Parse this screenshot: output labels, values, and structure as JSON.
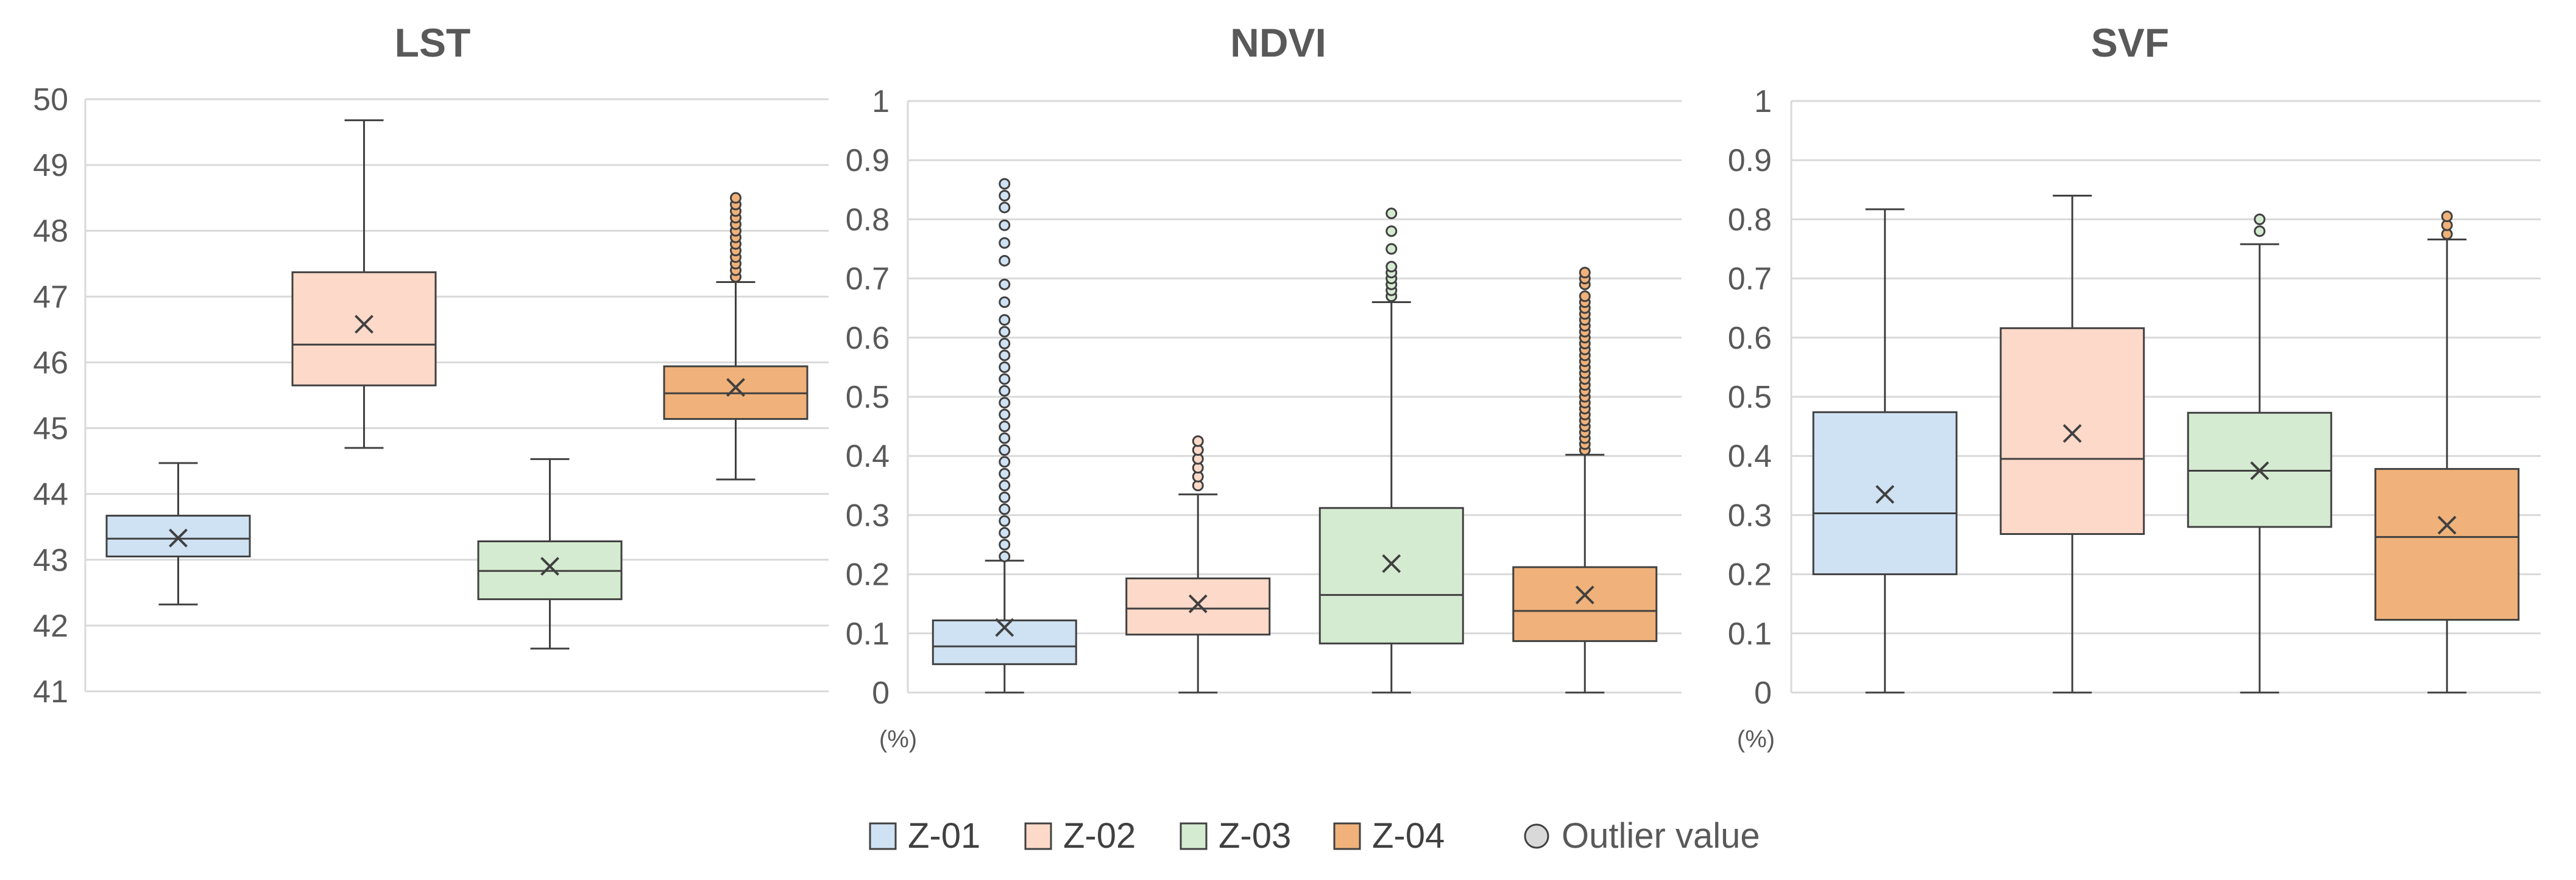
{
  "legend": {
    "items": [
      {
        "label": "Z-01",
        "color": "#cfe2f3"
      },
      {
        "label": "Z-02",
        "color": "#fdd9c9"
      },
      {
        "label": "Z-03",
        "color": "#d5ebd1"
      },
      {
        "label": "Z-04",
        "color": "#f0b27a"
      }
    ],
    "outlier_label": "Outlier value"
  },
  "chart_data": [
    {
      "type": "box",
      "title": "LST",
      "unit_label": "",
      "ylim": [
        41,
        50
      ],
      "yticks": [
        "41",
        "42",
        "43",
        "44",
        "45",
        "46",
        "47",
        "48",
        "49",
        "50"
      ],
      "series": [
        {
          "name": "Z-01",
          "min": 42.32,
          "q1": 43.05,
          "median": 43.32,
          "q3": 43.67,
          "max": 44.47,
          "mean": 43.33,
          "outliers": []
        },
        {
          "name": "Z-02",
          "min": 44.7,
          "q1": 45.65,
          "median": 46.27,
          "q3": 47.37,
          "max": 49.68,
          "mean": 46.58,
          "outliers": []
        },
        {
          "name": "Z-03",
          "min": 41.65,
          "q1": 42.4,
          "median": 42.83,
          "q3": 43.28,
          "max": 44.53,
          "mean": 42.9,
          "outliers": []
        },
        {
          "name": "Z-04",
          "min": 44.22,
          "q1": 45.14,
          "median": 45.53,
          "q3": 45.94,
          "max": 47.22,
          "mean": 45.62,
          "outliers": [
            47.3,
            47.4,
            47.5,
            47.6,
            47.7,
            47.8,
            47.9,
            48.0,
            48.1,
            48.2,
            48.3,
            48.4,
            48.5
          ]
        }
      ]
    },
    {
      "type": "box",
      "title": "NDVI",
      "unit_label": "(%)",
      "ylim": [
        0,
        1
      ],
      "yticks": [
        "0",
        "0.1",
        "0.2",
        "0.3",
        "0.4",
        "0.5",
        "0.6",
        "0.7",
        "0.8",
        "0.9",
        "1"
      ],
      "series": [
        {
          "name": "Z-01",
          "min": 0.0,
          "q1": 0.048,
          "median": 0.078,
          "q3": 0.122,
          "max": 0.223,
          "mean": 0.11,
          "outliers": [
            0.23,
            0.25,
            0.27,
            0.29,
            0.31,
            0.33,
            0.35,
            0.37,
            0.39,
            0.41,
            0.43,
            0.45,
            0.47,
            0.49,
            0.51,
            0.53,
            0.55,
            0.57,
            0.59,
            0.61,
            0.63,
            0.66,
            0.69,
            0.73,
            0.76,
            0.79,
            0.82,
            0.84,
            0.86
          ]
        },
        {
          "name": "Z-02",
          "min": 0.0,
          "q1": 0.098,
          "median": 0.142,
          "q3": 0.193,
          "max": 0.335,
          "mean": 0.15,
          "outliers": [
            0.35,
            0.365,
            0.38,
            0.395,
            0.41,
            0.425
          ]
        },
        {
          "name": "Z-03",
          "min": 0.0,
          "q1": 0.083,
          "median": 0.165,
          "q3": 0.312,
          "max": 0.66,
          "mean": 0.218,
          "outliers": [
            0.67,
            0.68,
            0.69,
            0.7,
            0.71,
            0.72,
            0.75,
            0.78,
            0.81
          ]
        },
        {
          "name": "Z-04",
          "min": 0.0,
          "q1": 0.087,
          "median": 0.138,
          "q3": 0.212,
          "max": 0.402,
          "mean": 0.165,
          "outliers": [
            0.41,
            0.42,
            0.43,
            0.44,
            0.45,
            0.46,
            0.47,
            0.48,
            0.49,
            0.5,
            0.51,
            0.52,
            0.53,
            0.54,
            0.55,
            0.56,
            0.57,
            0.58,
            0.59,
            0.6,
            0.61,
            0.62,
            0.63,
            0.64,
            0.65,
            0.66,
            0.67,
            0.69,
            0.7,
            0.71
          ]
        }
      ]
    },
    {
      "type": "box",
      "title": "SVF",
      "unit_label": "(%)",
      "ylim": [
        0,
        1
      ],
      "yticks": [
        "0",
        "0.1",
        "0.2",
        "0.3",
        "0.4",
        "0.5",
        "0.6",
        "0.7",
        "0.8",
        "0.9",
        "1"
      ],
      "series": [
        {
          "name": "Z-01",
          "min": 0.0,
          "q1": 0.2,
          "median": 0.303,
          "q3": 0.474,
          "max": 0.817,
          "mean": 0.335,
          "outliers": []
        },
        {
          "name": "Z-02",
          "min": 0.0,
          "q1": 0.268,
          "median": 0.395,
          "q3": 0.616,
          "max": 0.84,
          "mean": 0.438,
          "outliers": []
        },
        {
          "name": "Z-03",
          "min": 0.0,
          "q1": 0.28,
          "median": 0.375,
          "q3": 0.473,
          "max": 0.758,
          "mean": 0.375,
          "outliers": [
            0.78,
            0.8
          ]
        },
        {
          "name": "Z-04",
          "min": 0.0,
          "q1": 0.123,
          "median": 0.263,
          "q3": 0.378,
          "max": 0.766,
          "mean": 0.283,
          "outliers": [
            0.775,
            0.79,
            0.805
          ]
        }
      ]
    }
  ]
}
